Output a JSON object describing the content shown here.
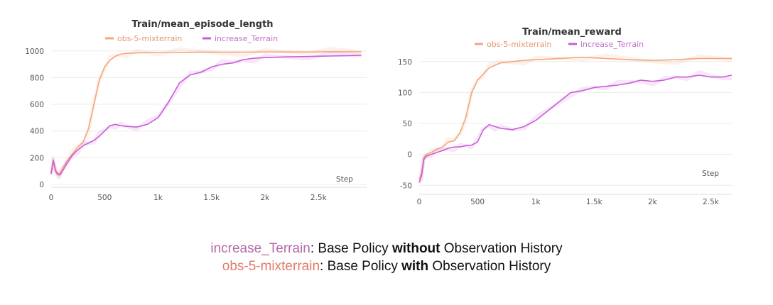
{
  "colors": {
    "obs": "#f4a67c",
    "obs_text": "#e59671",
    "inc": "#c85ed8",
    "inc_text": "#c06fc8",
    "grid": "#ececec",
    "axis_text": "#555555",
    "caption_inc": "#b56aa8",
    "caption_obs": "#e07b6a"
  },
  "chart_data": [
    {
      "type": "line",
      "title": "Train/mean_episode_length",
      "xlabel": "Step",
      "ylabel": "",
      "xlim": [
        0,
        2950
      ],
      "ylim": [
        0,
        1020
      ],
      "xticks": [
        0,
        500,
        1000,
        1500,
        2000,
        2500
      ],
      "xtick_labels": [
        "0",
        "500",
        "1k",
        "1.5k",
        "2k",
        "2.5k"
      ],
      "yticks": [
        0,
        200,
        400,
        600,
        800,
        1000
      ],
      "ytick_labels": [
        "0",
        "200",
        "400",
        "600",
        "800",
        "1000"
      ],
      "grid": true,
      "legend_position": "top",
      "series": [
        {
          "name": "obs-5-mixterrain",
          "x": [
            0,
            20,
            40,
            60,
            80,
            100,
            150,
            200,
            250,
            300,
            350,
            400,
            450,
            500,
            550,
            600,
            650,
            700,
            800,
            900,
            1000,
            1200,
            1400,
            1600,
            1800,
            2000,
            2200,
            2400,
            2600,
            2800,
            2900
          ],
          "y": [
            80,
            190,
            110,
            85,
            80,
            110,
            180,
            230,
            280,
            320,
            420,
            600,
            780,
            880,
            930,
            960,
            975,
            982,
            985,
            987,
            988,
            988,
            990,
            990,
            990,
            992,
            992,
            992,
            993,
            993,
            993
          ]
        },
        {
          "name": "increase_Terrain",
          "x": [
            0,
            20,
            40,
            60,
            80,
            100,
            150,
            200,
            250,
            300,
            350,
            400,
            450,
            500,
            550,
            600,
            650,
            700,
            800,
            900,
            1000,
            1100,
            1200,
            1300,
            1400,
            1500,
            1600,
            1700,
            1800,
            1900,
            2000,
            2200,
            2400,
            2600,
            2800,
            2900
          ],
          "y": [
            80,
            180,
            100,
            75,
            70,
            90,
            160,
            220,
            260,
            290,
            310,
            330,
            360,
            400,
            440,
            450,
            440,
            435,
            430,
            450,
            500,
            620,
            760,
            820,
            840,
            880,
            900,
            910,
            935,
            945,
            950,
            955,
            958,
            962,
            965,
            968
          ]
        }
      ]
    },
    {
      "type": "line",
      "title": "Train/mean_reward",
      "xlabel": "Step",
      "ylabel": "",
      "xlim": [
        0,
        2680
      ],
      "ylim": [
        -60,
        175
      ],
      "xticks": [
        0,
        500,
        1000,
        1500,
        2000,
        2500
      ],
      "xtick_labels": [
        "0",
        "500",
        "1k",
        "1.5k",
        "2k",
        "2.5k"
      ],
      "yticks": [
        -50,
        0,
        50,
        100,
        150
      ],
      "ytick_labels": [
        "-50",
        "0",
        "50",
        "100",
        "150"
      ],
      "grid": true,
      "legend_position": "top",
      "series": [
        {
          "name": "obs-5-mixterrain",
          "x": [
            0,
            20,
            40,
            60,
            100,
            150,
            200,
            250,
            300,
            350,
            400,
            450,
            500,
            550,
            600,
            700,
            800,
            900,
            1000,
            1200,
            1400,
            1600,
            1800,
            2000,
            2200,
            2400,
            2600,
            2680
          ],
          "y": [
            -40,
            -30,
            -5,
            0,
            3,
            8,
            12,
            20,
            22,
            35,
            60,
            100,
            120,
            130,
            140,
            148,
            150,
            152,
            153,
            155,
            157,
            155,
            153,
            152,
            153,
            155,
            155,
            155
          ]
        },
        {
          "name": "increase_Terrain",
          "x": [
            0,
            20,
            40,
            60,
            100,
            150,
            200,
            250,
            300,
            350,
            400,
            450,
            500,
            550,
            600,
            650,
            700,
            800,
            900,
            1000,
            1100,
            1200,
            1300,
            1400,
            1500,
            1600,
            1700,
            1800,
            1900,
            2000,
            2100,
            2200,
            2300,
            2400,
            2500,
            2600,
            2680
          ],
          "y": [
            -45,
            -35,
            -8,
            -3,
            0,
            3,
            6,
            10,
            12,
            12,
            14,
            15,
            20,
            40,
            48,
            45,
            42,
            40,
            45,
            55,
            70,
            85,
            100,
            103,
            108,
            110,
            112,
            115,
            120,
            118,
            120,
            125,
            125,
            128,
            125,
            125,
            128
          ]
        }
      ]
    }
  ],
  "caption": {
    "line1": {
      "series": "increase_Terrain",
      "pre": ": Base Policy ",
      "bold": "without",
      "post": " Observation History"
    },
    "line2": {
      "series": "obs-5-mixterrain",
      "pre": ": Base Policy ",
      "bold": "with",
      "post": " Observation History"
    }
  }
}
